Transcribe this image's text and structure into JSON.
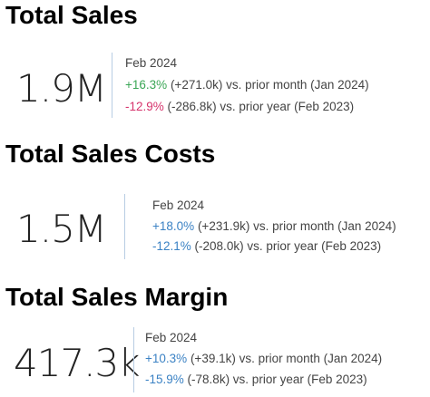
{
  "cards": [
    {
      "title": "Total Sales",
      "value": "1.9M",
      "period": "Feb 2024",
      "comparisons": [
        {
          "change": "+16.3%",
          "detail": "(+271.0k) vs. prior month (Jan 2024)",
          "color": "#3aa655"
        },
        {
          "change": "-12.9%",
          "detail": "(-286.8k) vs. prior year (Feb 2023)",
          "color": "#d6336c"
        }
      ]
    },
    {
      "title": "Total Sales Costs",
      "value": "1.5M",
      "period": "Feb 2024",
      "comparisons": [
        {
          "change": "+18.0%",
          "detail": "(+231.9k) vs. prior month (Jan 2024)",
          "color": "#3b82c4"
        },
        {
          "change": "-12.1%",
          "detail": "(-208.0k) vs. prior year (Feb 2023)",
          "color": "#3b82c4"
        }
      ]
    },
    {
      "title": "Total Sales Margin",
      "value": "417.3k",
      "period": "Feb 2024",
      "comparisons": [
        {
          "change": "+10.3%",
          "detail": "(+39.1k) vs. prior month (Jan 2024)",
          "color": "#3b82c4"
        },
        {
          "change": "-15.9%",
          "detail": "(-78.8k) vs. prior year (Feb 2023)",
          "color": "#3b82c4"
        }
      ]
    }
  ]
}
